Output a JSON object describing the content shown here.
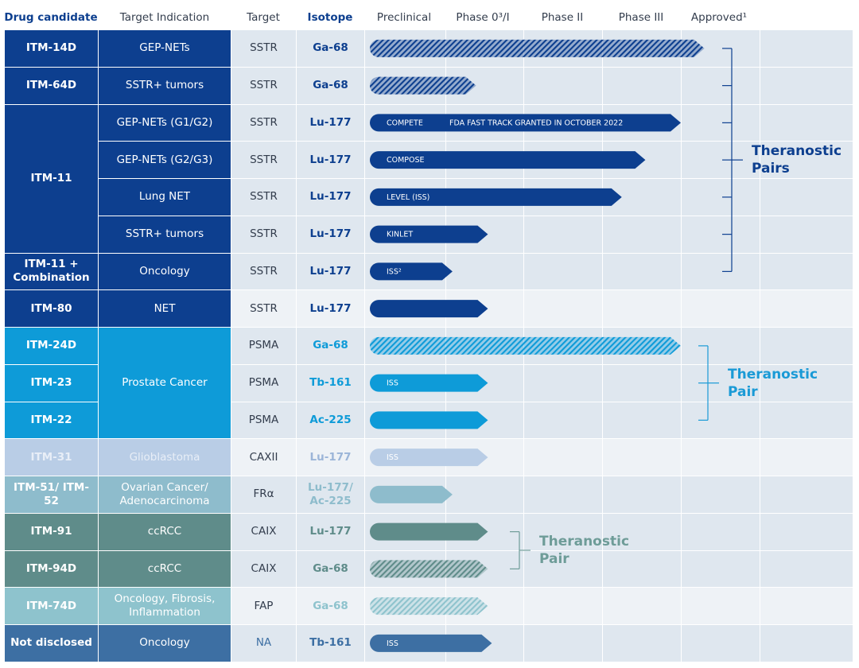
{
  "header": [
    "Drug candidate",
    "Target Indication",
    "Target",
    "Isotope",
    "Preclinical",
    "Phase 0³/I",
    "Phase II",
    "Phase III",
    "Approved¹"
  ],
  "rows": [
    {
      "drug": "ITM-14D",
      "indication": "GEP-NETs",
      "target": "SSTR",
      "isotope": "Ga-68",
      "labels": [],
      "progress": 4.3,
      "color": "#0d3f8f",
      "hatched": true
    },
    {
      "drug": "ITM-64D",
      "indication": "SSTR+ tumors",
      "target": "SSTR",
      "isotope": "Ga-68",
      "labels": [],
      "progress": 1.4,
      "color": "#0d3f8f",
      "hatched": true
    },
    {
      "drug": "ITM-11",
      "indication": "GEP-NETs (G1/G2)",
      "target": "SSTR",
      "isotope": "Lu-177",
      "labels": [
        "COMPETE",
        "FDA FAST TRACK GRANTED IN OCTOBER 2022"
      ],
      "progress": 4.0,
      "color": "#0d3f8f",
      "hatched": false
    },
    {
      "drug": null,
      "indication": "GEP-NETs (G2/G3)",
      "target": "SSTR",
      "isotope": "Lu-177",
      "labels": [
        "COMPOSE"
      ],
      "progress": 3.55,
      "color": "#0d3f8f",
      "hatched": false
    },
    {
      "drug": null,
      "indication": "Lung NET",
      "target": "SSTR",
      "isotope": "Lu-177",
      "labels": [
        "LEVEL (ISS)"
      ],
      "progress": 3.25,
      "color": "#0d3f8f",
      "hatched": false
    },
    {
      "drug": null,
      "indication": "SSTR+ tumors",
      "target": "SSTR",
      "isotope": "Lu-177",
      "labels": [
        "KINLET"
      ],
      "progress": 1.55,
      "color": "#0d3f8f",
      "hatched": false
    },
    {
      "drug": "ITM-11 + Combination",
      "indication": "Oncology",
      "target": "SSTR",
      "isotope": "Lu-177",
      "labels": [
        "ISS²"
      ],
      "progress": 1.1,
      "color": "#0d3f8f",
      "hatched": false
    },
    {
      "drug": "ITM-80",
      "indication": "NET",
      "target": "SSTR",
      "isotope": "Lu-177",
      "labels": [],
      "progress": 1.55,
      "color": "#0d3f8f",
      "hatched": false
    },
    {
      "drug": "ITM-24D",
      "indication": "Prostate Cancer",
      "target": "PSMA",
      "isotope": "Ga-68",
      "labels": [],
      "progress": 4.0,
      "color": "#0e9bd8",
      "hatched": true
    },
    {
      "drug": "ITM-23",
      "indication": null,
      "target": "PSMA",
      "isotope": "Tb-161",
      "labels": [
        "ISS"
      ],
      "progress": 1.55,
      "color": "#0e9bd8",
      "hatched": false
    },
    {
      "drug": "ITM-22",
      "indication": null,
      "target": "PSMA",
      "isotope": "Ac-225",
      "labels": [],
      "progress": 1.55,
      "color": "#0e9bd8",
      "hatched": false
    },
    {
      "drug": "ITM-31",
      "indication": "Glioblastoma",
      "target": "CAXII",
      "isotope": "Lu-177",
      "labels": [
        "ISS"
      ],
      "progress": 1.55,
      "color": "#b9cde6",
      "hatched": false
    },
    {
      "drug": "ITM-51/ ITM-52",
      "indication": "Ovarian Cancer/ Adenocarcinoma",
      "target": "FRα",
      "isotope": "Lu-177/ Ac-225",
      "labels": [],
      "progress": 1.1,
      "color": "#8ebccc",
      "hatched": false
    },
    {
      "drug": "ITM-91",
      "indication": "ccRCC",
      "target": "CAIX",
      "isotope": "Lu-177",
      "labels": [],
      "progress": 1.55,
      "color": "#5f8c8a",
      "hatched": false
    },
    {
      "drug": "ITM-94D",
      "indication": "ccRCC",
      "target": "CAIX",
      "isotope": "Ga-68",
      "labels": [],
      "progress": 1.55,
      "color": "#5f8c8a",
      "hatched": true
    },
    {
      "drug": "ITM-74D",
      "indication": "Oncology, Fibrosis, Inflammation",
      "target": "FAP",
      "isotope": "Ga-68",
      "labels": [],
      "progress": 1.55,
      "color": "#8ec3cd",
      "hatched": true
    },
    {
      "drug": "Not disclosed",
      "indication": "Oncology",
      "target": "NA",
      "isotope": "Tb-161",
      "labels": [
        "ISS"
      ],
      "progress": 1.6,
      "color": "#3d6fa3",
      "hatched": false
    }
  ],
  "pairs": [
    "Theranostic Pairs",
    "Theranostic Pair",
    "Theranostic Pair"
  ]
}
